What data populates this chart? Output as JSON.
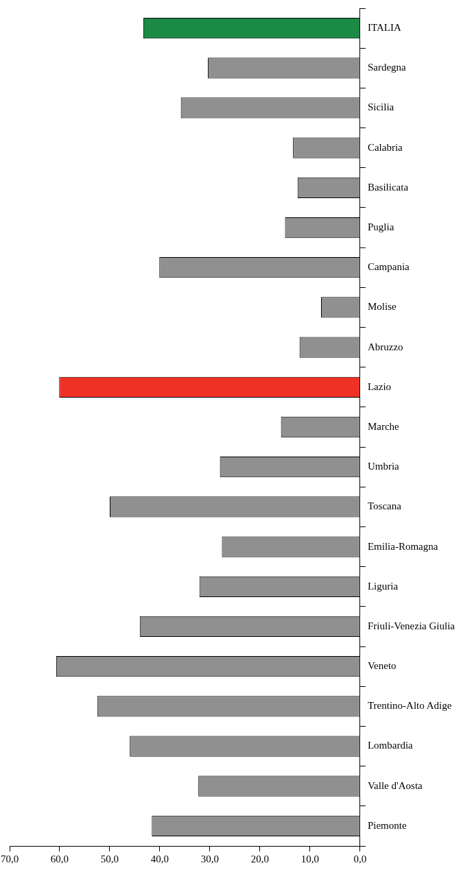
{
  "chart_data": {
    "type": "bar",
    "orientation": "horizontal",
    "categories": [
      "ITALIA",
      "Sardegna",
      "Sicilia",
      "Calabria",
      "Basilicata",
      "Puglia",
      "Campania",
      "Molise",
      "Abruzzo",
      "Lazio",
      "Marche",
      "Umbria",
      "Toscana",
      "Emilia-Romagna",
      "Liguria",
      "Friuli-Venezia Giulia",
      "Veneto",
      "Trentino-Alto Adige",
      "Lombardia",
      "Valle d'Aosta",
      "Piemonte"
    ],
    "values": [
      43.3,
      30.4,
      35.8,
      13.4,
      12.5,
      15.0,
      40.1,
      7.8,
      12.1,
      60.1,
      15.8,
      28.0,
      50.0,
      27.6,
      32.1,
      44.0,
      60.7,
      52.5,
      46.0,
      32.3,
      41.6
    ],
    "colors": [
      "#1a8a45",
      "#909090",
      "#909090",
      "#909090",
      "#909090",
      "#909090",
      "#909090",
      "#909090",
      "#909090",
      "#ee3124",
      "#909090",
      "#909090",
      "#909090",
      "#909090",
      "#909090",
      "#909090",
      "#909090",
      "#909090",
      "#909090",
      "#909090",
      "#909090"
    ],
    "xlim": [
      70,
      0
    ],
    "xticks": [
      {
        "value": 0,
        "label": "0,0"
      },
      {
        "value": 10,
        "label": "10,0"
      },
      {
        "value": 20,
        "label": "20,0"
      },
      {
        "value": 30,
        "label": "30,0"
      },
      {
        "value": 40,
        "label": "40,0"
      },
      {
        "value": 50,
        "label": "50,0"
      },
      {
        "value": 60,
        "label": "60,0"
      },
      {
        "value": 70,
        "label": "70,0"
      }
    ],
    "grid": false,
    "legend": false
  }
}
